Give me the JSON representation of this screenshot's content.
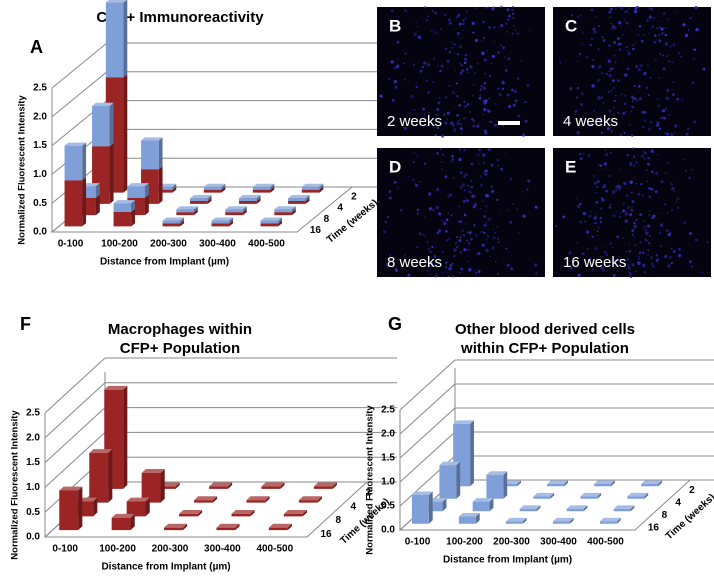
{
  "chart_data": [
    {
      "type": "bar3d",
      "panel": "A",
      "title": [
        "CFP+ Immunoreactivity"
      ],
      "stacked": true,
      "ylabel": "Normalized Fluorescent Intensity",
      "xlabel": "Distance from Implant (µm)",
      "zlabel": "Time (weeks)",
      "categories": [
        "0-100",
        "100-200",
        "200-300",
        "300-400",
        "400-500"
      ],
      "depth": [
        "16",
        "8",
        "4",
        "2"
      ],
      "ylim": [
        0,
        2.5
      ],
      "yticks": [
        {
          "value": 0,
          "label": "0.0"
        },
        0.5,
        {
          "value": 1,
          "label": "1.0"
        },
        1.5,
        {
          "value": 2,
          "label": "2.0"
        },
        2.5
      ],
      "series": [
        {
          "color": "#9b2424",
          "values": [
            [
              0.8,
              0.25,
              0.05,
              0.05,
              0.05
            ],
            [
              0.3,
              0.3,
              0.05,
              0.05,
              0.05
            ],
            [
              1.0,
              0.6,
              0.05,
              0.05,
              0.05
            ],
            [
              2.0,
              0.05,
              0.05,
              0.05,
              0.05
            ]
          ]
        },
        {
          "color": "#7f9fd9",
          "values": [
            [
              0.6,
              0.15,
              0.05,
              0.05,
              0.05
            ],
            [
              0.2,
              0.2,
              0.05,
              0.05,
              0.05
            ],
            [
              0.7,
              0.5,
              0.05,
              0.05,
              0.05
            ],
            [
              1.3,
              0.05,
              0.05,
              0.05,
              0.05
            ]
          ]
        }
      ]
    },
    {
      "type": "bar3d",
      "panel": "F",
      "title": [
        "Macrophages within",
        "CFP+ Population"
      ],
      "stacked": false,
      "ylabel": "Normalized Fluorescent Intensity",
      "xlabel": "Distance from Implant (µm)",
      "zlabel": "Time (weeks)",
      "categories": [
        "0-100",
        "100-200",
        "200-300",
        "300-400",
        "400-500"
      ],
      "depth": [
        "16",
        "8",
        "4",
        "2"
      ],
      "ylim": [
        0,
        2.5
      ],
      "yticks": [
        {
          "value": 0,
          "label": "0.0"
        },
        0.5,
        {
          "value": 1,
          "label": "1.0"
        },
        1.5,
        {
          "value": 2,
          "label": "2.0"
        },
        2.5
      ],
      "series": [
        {
          "color": "#9b2424",
          "values": [
            [
              0.8,
              0.25,
              0.05,
              0.05,
              0.05
            ],
            [
              0.3,
              0.3,
              0.05,
              0.05,
              0.05
            ],
            [
              1.0,
              0.6,
              0.05,
              0.05,
              0.05
            ],
            [
              2.0,
              0.05,
              0.05,
              0.05,
              0.05
            ]
          ]
        }
      ]
    },
    {
      "type": "bar3d",
      "panel": "G",
      "title": [
        "Other blood derived cells",
        "within CFP+ Population"
      ],
      "stacked": false,
      "ylabel": "Normalized Fluorescent Intensity",
      "xlabel": "Distance from Implant (µm)",
      "zlabel": "Time (weeks)",
      "categories": [
        "0-100",
        "100-200",
        "200-300",
        "300-400",
        "400-500"
      ],
      "depth": [
        "16",
        "8",
        "4",
        "2"
      ],
      "ylim": [
        0,
        2.5
      ],
      "yticks": [
        {
          "value": 0,
          "label": "0.0"
        },
        0.5,
        {
          "value": 1,
          "label": "1.0"
        },
        1.5,
        {
          "value": 2,
          "label": "2.0"
        },
        2.5
      ],
      "series": [
        {
          "color": "#7f9fd9",
          "values": [
            [
              0.6,
              0.15,
              0.05,
              0.05,
              0.05
            ],
            [
              0.2,
              0.2,
              0.05,
              0.05,
              0.05
            ],
            [
              0.7,
              0.5,
              0.05,
              0.05,
              0.05
            ],
            [
              1.3,
              0.05,
              0.05,
              0.05,
              0.05
            ]
          ]
        }
      ]
    }
  ],
  "images": [
    {
      "label": "B",
      "caption": "2 weeks"
    },
    {
      "label": "C",
      "caption": "4 weeks"
    },
    {
      "label": "D",
      "caption": "8 weeks"
    },
    {
      "label": "E",
      "caption": "16 weeks"
    }
  ]
}
